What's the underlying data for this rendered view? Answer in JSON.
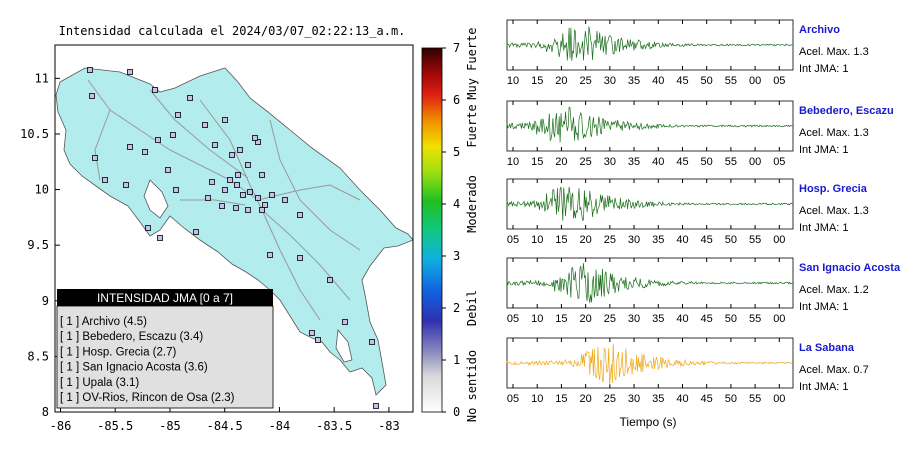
{
  "title": "Intensidad calculada el 2024/03/07_02:22:13_a.m.",
  "map": {
    "xticks": [
      "-86",
      "-85.5",
      "-85",
      "-84.5",
      "-84",
      "-83.5",
      "-83"
    ],
    "xtick_values": [
      -86,
      -85.5,
      -85,
      -84.5,
      -84,
      -83.5,
      -83
    ],
    "xlim": [
      -86.05,
      -82.78
    ],
    "yticks": [
      "11",
      "10.5",
      "10",
      "9.5",
      "9",
      "8.5",
      "8"
    ],
    "ytick_values": [
      11,
      10.5,
      10,
      9.5,
      9,
      8.5,
      8
    ],
    "ylim": [
      8,
      11.3
    ],
    "legend_title": "INTENSIDAD JMA [0 a 7]",
    "legend_items": [
      "[ 1 ]  Archivo (4.5)",
      "[ 1 ]  Bebedero, Escazu (3.4)",
      "[ 1 ]  Hosp. Grecia (2.7)",
      "[ 1 ]  San Ignacio Acosta (3.6)",
      "[ 1 ]  Upala (3.1)",
      "[ 1 ]  OV-Rios, Rincon de Osa (2.3)"
    ],
    "colors": {
      "land": "#b3ecec",
      "roads": "#999999",
      "marker_fill": "#c8c0e8"
    }
  },
  "colorbar": {
    "ticks": [
      "0",
      "1",
      "2",
      "3",
      "4",
      "5",
      "6",
      "7"
    ],
    "tick_values": [
      0,
      1,
      2,
      3,
      4,
      5,
      6,
      7
    ],
    "labels": [
      "No sentido",
      "Debil",
      "Moderado",
      "Fuerte",
      "Muy Fuerte"
    ],
    "label_values": [
      0.5,
      2.0,
      4.0,
      5.5,
      6.7
    ],
    "range": [
      0,
      7
    ]
  },
  "chart_data": [
    {
      "type": "line",
      "name": "Archivo",
      "xticks": [
        "10",
        "15",
        "20",
        "25",
        "30",
        "35",
        "40",
        "45",
        "50",
        "55",
        "00",
        "05"
      ],
      "peak_at": "23",
      "accel_label": "Acel. Max. 1.3",
      "int_label": "Int JMA: 1",
      "color": "#1a6e1a"
    },
    {
      "type": "line",
      "name": "Bebedero, Escazu",
      "xticks": [
        "10",
        "15",
        "20",
        "25",
        "30",
        "35",
        "40",
        "45",
        "50",
        "55",
        "00",
        "05"
      ],
      "peak_at": "20",
      "accel_label": "Acel. Max. 1.3",
      "int_label": "Int JMA: 1",
      "color": "#1a6e1a"
    },
    {
      "type": "line",
      "name": "Hosp. Grecia",
      "xticks": [
        "05",
        "10",
        "15",
        "20",
        "25",
        "30",
        "35",
        "40",
        "45",
        "50",
        "55",
        "00"
      ],
      "peak_at": "16",
      "accel_label": "Acel. Max. 1.3",
      "int_label": "Int JMA: 1",
      "color": "#1a6e1a"
    },
    {
      "type": "line",
      "name": "San Ignacio Acosta",
      "xticks": [
        "05",
        "10",
        "15",
        "20",
        "25",
        "30",
        "35",
        "40",
        "45",
        "50",
        "55",
        "00"
      ],
      "peak_at": "19",
      "accel_label": "Acel. Max. 1.2",
      "int_label": "Int JMA: 1",
      "color": "#1a6e1a"
    },
    {
      "type": "line",
      "name": "La Sabana",
      "xticks": [
        "05",
        "10",
        "15",
        "20",
        "25",
        "30",
        "35",
        "40",
        "45",
        "50",
        "55",
        "00"
      ],
      "peak_at": "24",
      "accel_label": "Acel. Max. 0.7",
      "int_label": "Int JMA: 1",
      "color": "#f0a818"
    }
  ],
  "xlabel": "Tiempo (s)"
}
